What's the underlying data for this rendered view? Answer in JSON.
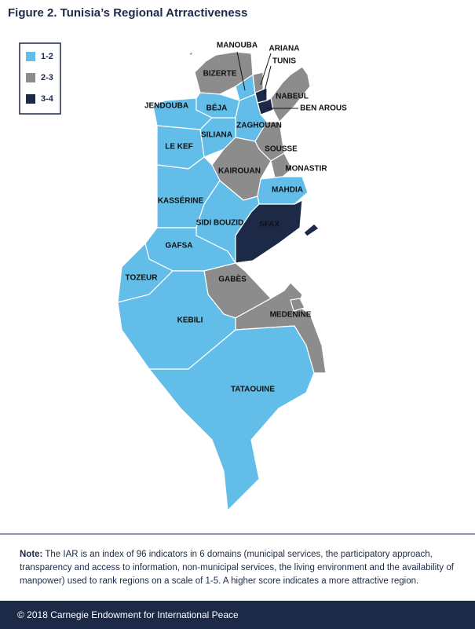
{
  "title": "Figure 2. Tunisia’s Regional Atrractiveness",
  "legend": [
    {
      "label": "1-2",
      "color": "#62bde8"
    },
    {
      "label": "2-3",
      "color": "#8c8c8c"
    },
    {
      "label": "3-4",
      "color": "#1c2a47"
    }
  ],
  "regions": [
    {
      "name": "MANOUBA",
      "class": 0
    },
    {
      "name": "ARIANA",
      "class": 1
    },
    {
      "name": "TUNIS",
      "class": 2
    },
    {
      "name": "BIZERTE",
      "class": 1
    },
    {
      "name": "NABEUL",
      "class": 1
    },
    {
      "name": "BEN AROUS",
      "class": 2
    },
    {
      "name": "JENDOUBA",
      "class": 0
    },
    {
      "name": "BÉJA",
      "class": 0
    },
    {
      "name": "ZAGHOUAN",
      "class": 0
    },
    {
      "name": "SILIANA",
      "class": 0
    },
    {
      "name": "LE KEF",
      "class": 0
    },
    {
      "name": "SOUSSE",
      "class": 1
    },
    {
      "name": "KAIROUAN",
      "class": 1
    },
    {
      "name": "MONASTIR",
      "class": 1
    },
    {
      "name": "MAHDIA",
      "class": 0
    },
    {
      "name": "KASSÉRINE",
      "class": 0
    },
    {
      "name": "SIDI BOUZID",
      "class": 0
    },
    {
      "name": "SFAX",
      "class": 2
    },
    {
      "name": "GAFSA",
      "class": 0
    },
    {
      "name": "TOZEUR",
      "class": 0
    },
    {
      "name": "GABÈS",
      "class": 1
    },
    {
      "name": "MEDENINE",
      "class": 1
    },
    {
      "name": "KEBILI",
      "class": 0
    },
    {
      "name": "TATAOUINE",
      "class": 0
    }
  ],
  "note": {
    "label": "Note:",
    "text": "The IAR is an index of 96 indicators in 6 domains (municipal services, the participatory approach, transparency and access to information, non-municipal services, the living environment and the availability of manpower) used to rank regions on a scale of 1-5.  A higher score indicates a more attractive region."
  },
  "footer": "© 2018 Carnegie Endowment for International Peace"
}
